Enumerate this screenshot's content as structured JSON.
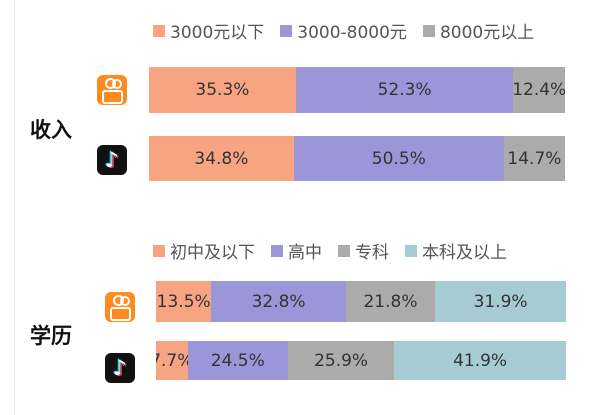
{
  "chart_data": [
    {
      "type": "bar",
      "orientation": "horizontal",
      "stacked": true,
      "section": "收入",
      "categories": [
        "快手",
        "抖音"
      ],
      "series": [
        {
          "name": "3000元以下",
          "color": "#f7a483",
          "values": [
            35.3,
            34.8
          ],
          "labels": [
            "35.3%",
            "34.8%"
          ]
        },
        {
          "name": "3000-8000元",
          "color": "#9b96d8",
          "values": [
            52.3,
            50.5
          ],
          "labels": [
            "52.3%",
            "50.5%"
          ]
        },
        {
          "name": "8000元以上",
          "color": "#ababab",
          "values": [
            12.4,
            14.7
          ],
          "labels": [
            "12.4%",
            "14.7%"
          ]
        }
      ],
      "legend_position": "top"
    },
    {
      "type": "bar",
      "orientation": "horizontal",
      "stacked": true,
      "section": "学历",
      "categories": [
        "快手",
        "抖音"
      ],
      "series": [
        {
          "name": "初中及以下",
          "color": "#f7a483",
          "values": [
            13.5,
            7.7
          ],
          "labels": [
            "13.5%",
            "7.7%"
          ]
        },
        {
          "name": "高中",
          "color": "#9b96d8",
          "values": [
            32.8,
            24.5
          ],
          "labels": [
            "32.8%",
            "24.5%"
          ]
        },
        {
          "name": "专科",
          "color": "#ababab",
          "values": [
            21.8,
            25.9
          ],
          "labels": [
            "21.8%",
            "25.9%"
          ]
        },
        {
          "name": "本科及以上",
          "color": "#a7cbd2",
          "values": [
            31.9,
            41.9
          ],
          "labels": [
            "31.9%",
            "41.9%"
          ]
        }
      ],
      "legend_position": "top"
    }
  ],
  "icons": [
    "kuaishou-app-icon",
    "douyin-app-icon"
  ]
}
